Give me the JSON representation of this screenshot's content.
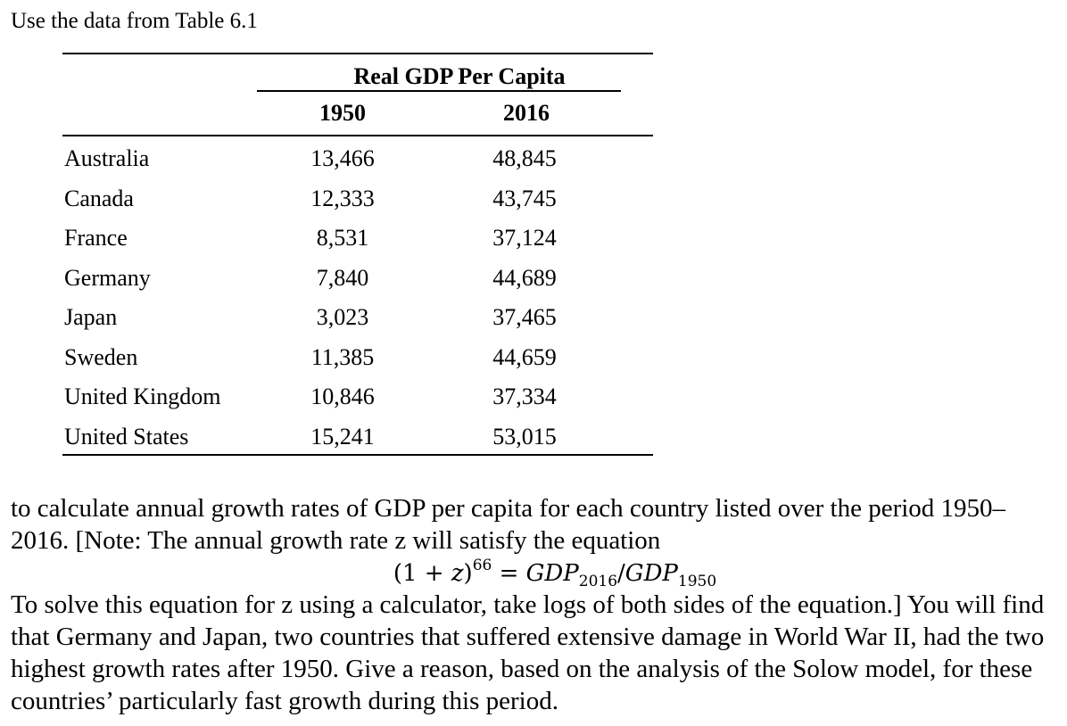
{
  "intro": "Use the data from Table 6.1",
  "table": {
    "group_header": "Real GDP Per Capita",
    "col_headers": [
      "1950",
      "2016"
    ],
    "rows": [
      {
        "country": "Australia",
        "v1950": "13,466",
        "v2016": "48,845"
      },
      {
        "country": "Canada",
        "v1950": "12,333",
        "v2016": "43,745"
      },
      {
        "country": "France",
        "v1950": "8,531",
        "v2016": "37,124"
      },
      {
        "country": "Germany",
        "v1950": "7,840",
        "v2016": "44,689"
      },
      {
        "country": "Japan",
        "v1950": "3,023",
        "v2016": "37,465"
      },
      {
        "country": "Sweden",
        "v1950": "11,385",
        "v2016": "44,659"
      },
      {
        "country": "United Kingdom",
        "v1950": "10,846",
        "v2016": "37,334"
      },
      {
        "country": "United States",
        "v1950": "15,241",
        "v2016": "53,015"
      }
    ]
  },
  "paragraph1": "to calculate annual growth rates of GDP per capita for each country listed over the period 1950–2016. [Note: The annual growth rate z will satisfy the equation",
  "equation": {
    "lhs_open": "(1 + ",
    "lhs_var": "z",
    "lhs_close": ")",
    "exponent": "66",
    "equals": " = ",
    "num": "GDP",
    "num_sub": "2016",
    "slash": "/",
    "den": "GDP",
    "den_sub": "1950"
  },
  "paragraph2": "To solve this equation for z using a calculator, take logs of both sides of the equation.] You will find that Germany and Japan, two countries that suffered extensive damage in World War II, had the two highest growth rates after 1950. Give a reason, based on the analysis of the Solow model, for these countries’ particularly fast growth during this period."
}
